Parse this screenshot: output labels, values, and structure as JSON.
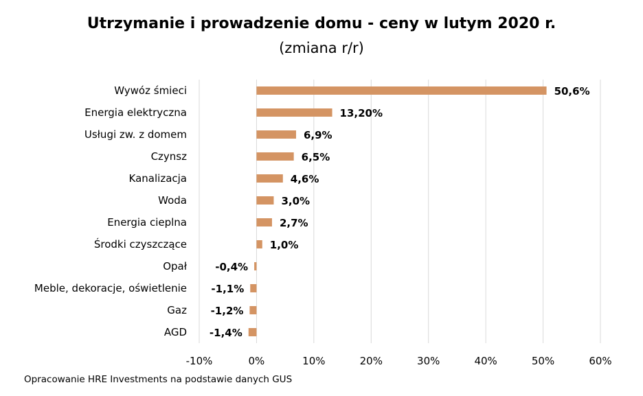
{
  "chart_data": {
    "type": "bar",
    "orientation": "horizontal",
    "title": "Utrzymanie i prowadzenie domu - ceny w lutym 2020 r.",
    "subtitle": "(zmiana r/r)",
    "categories": [
      "Wywóz śmieci",
      "Energia elektryczna",
      "Usługi zw. z domem",
      "Czynsz",
      "Kanalizacja",
      "Woda",
      "Energia cieplna",
      "Środki czyszczące",
      "Opał",
      "Meble, dekoracje, oświetlenie",
      "Gaz",
      "AGD"
    ],
    "values": [
      50.6,
      13.2,
      6.9,
      6.5,
      4.6,
      3.0,
      2.7,
      1.0,
      -0.4,
      -1.1,
      -1.2,
      -1.4
    ],
    "data_labels": [
      "50,6%",
      "13,20%",
      "6,9%",
      "6,5%",
      "4,6%",
      "3,0%",
      "2,7%",
      "1,0%",
      "-0,4%",
      "-1,1%",
      "-1,2%",
      "-1,4%"
    ],
    "xlim": [
      -10,
      60
    ],
    "xticks": [
      -10,
      0,
      10,
      20,
      30,
      40,
      50,
      60
    ],
    "xtick_labels": [
      "-10%",
      "0%",
      "10%",
      "20%",
      "30%",
      "40%",
      "50%",
      "60%"
    ],
    "grid": true,
    "legend": false,
    "bar_color": "#D49463",
    "grid_color": "#D9D9D9"
  },
  "source": "Opracowanie HRE Investments na podstawie danych GUS"
}
